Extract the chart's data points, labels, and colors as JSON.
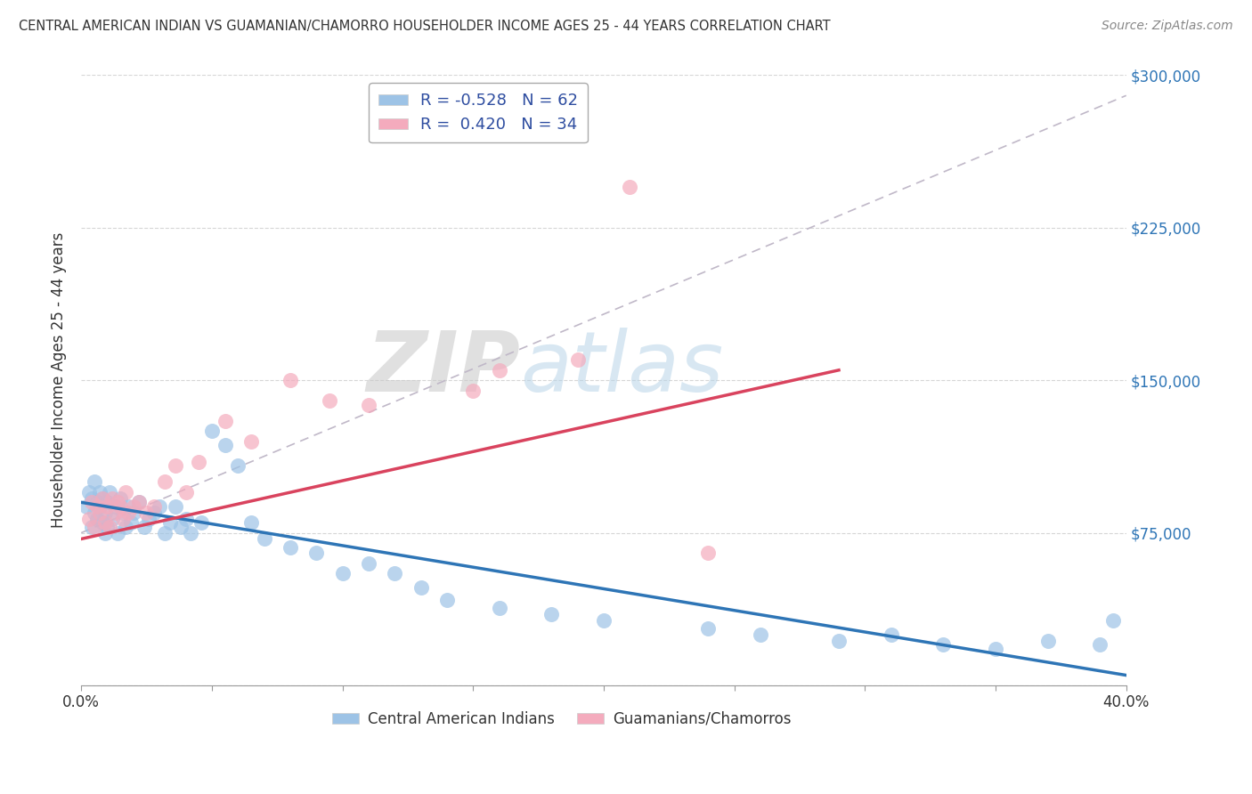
{
  "title": "CENTRAL AMERICAN INDIAN VS GUAMANIAN/CHAMORRO HOUSEHOLDER INCOME AGES 25 - 44 YEARS CORRELATION CHART",
  "source": "Source: ZipAtlas.com",
  "ylabel": "Householder Income Ages 25 - 44 years",
  "xlim": [
    0.0,
    0.4
  ],
  "ylim": [
    0,
    300000
  ],
  "xticks": [
    0.0,
    0.05,
    0.1,
    0.15,
    0.2,
    0.25,
    0.3,
    0.35,
    0.4
  ],
  "xticklabels": [
    "0.0%",
    "",
    "",
    "",
    "",
    "",
    "",
    "",
    "40.0%"
  ],
  "yticks": [
    0,
    75000,
    150000,
    225000,
    300000
  ],
  "yticklabels": [
    "",
    "$75,000",
    "$150,000",
    "$225,000",
    "$300,000"
  ],
  "legend1_label": "R = -0.528   N = 62",
  "legend2_label": "R =  0.420   N = 34",
  "legend_label1": "Central American Indians",
  "legend_label2": "Guamanians/Chamorros",
  "blue_color": "#9DC3E6",
  "pink_color": "#F4ABBD",
  "blue_line_color": "#2E75B6",
  "pink_line_color": "#D9435E",
  "dashed_line_color": "#C0B8C8",
  "watermark_zip": "ZIP",
  "watermark_atlas": "atlas",
  "blue_scatter_x": [
    0.002,
    0.003,
    0.004,
    0.004,
    0.005,
    0.005,
    0.006,
    0.006,
    0.007,
    0.007,
    0.008,
    0.008,
    0.009,
    0.009,
    0.01,
    0.01,
    0.011,
    0.012,
    0.013,
    0.014,
    0.015,
    0.016,
    0.017,
    0.018,
    0.019,
    0.02,
    0.022,
    0.024,
    0.026,
    0.028,
    0.03,
    0.032,
    0.034,
    0.036,
    0.038,
    0.04,
    0.042,
    0.046,
    0.05,
    0.055,
    0.06,
    0.065,
    0.07,
    0.08,
    0.09,
    0.1,
    0.11,
    0.12,
    0.13,
    0.14,
    0.16,
    0.18,
    0.2,
    0.24,
    0.26,
    0.29,
    0.31,
    0.33,
    0.35,
    0.37,
    0.39,
    0.395
  ],
  "blue_scatter_y": [
    88000,
    95000,
    92000,
    78000,
    85000,
    100000,
    90000,
    82000,
    95000,
    88000,
    80000,
    92000,
    75000,
    85000,
    90000,
    78000,
    95000,
    82000,
    88000,
    75000,
    92000,
    85000,
    78000,
    88000,
    80000,
    85000,
    90000,
    78000,
    82000,
    85000,
    88000,
    75000,
    80000,
    88000,
    78000,
    82000,
    75000,
    80000,
    125000,
    118000,
    108000,
    80000,
    72000,
    68000,
    65000,
    55000,
    60000,
    55000,
    48000,
    42000,
    38000,
    35000,
    32000,
    28000,
    25000,
    22000,
    25000,
    20000,
    18000,
    22000,
    20000,
    32000
  ],
  "pink_scatter_x": [
    0.003,
    0.004,
    0.005,
    0.006,
    0.007,
    0.008,
    0.009,
    0.01,
    0.011,
    0.012,
    0.013,
    0.014,
    0.015,
    0.016,
    0.017,
    0.018,
    0.02,
    0.022,
    0.025,
    0.028,
    0.032,
    0.036,
    0.04,
    0.045,
    0.055,
    0.065,
    0.08,
    0.095,
    0.11,
    0.15,
    0.16,
    0.19,
    0.21,
    0.24
  ],
  "pink_scatter_y": [
    82000,
    90000,
    78000,
    88000,
    85000,
    92000,
    80000,
    88000,
    78000,
    92000,
    85000,
    90000,
    88000,
    82000,
    95000,
    85000,
    88000,
    90000,
    85000,
    88000,
    100000,
    108000,
    95000,
    110000,
    130000,
    120000,
    150000,
    140000,
    138000,
    145000,
    155000,
    160000,
    245000,
    65000
  ],
  "blue_trend_x": [
    0.0,
    0.4
  ],
  "blue_trend_y": [
    90000,
    5000
  ],
  "pink_trend_x": [
    0.0,
    0.29
  ],
  "pink_trend_y": [
    72000,
    155000
  ],
  "dashed_trend_x": [
    0.0,
    0.4
  ],
  "dashed_trend_y": [
    75000,
    290000
  ]
}
